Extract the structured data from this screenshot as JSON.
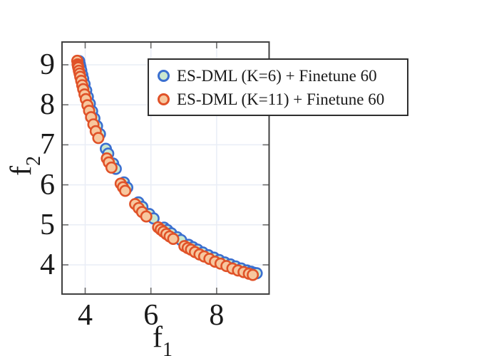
{
  "figure": {
    "background": "#ffffff",
    "border_color": "#404040",
    "grid_color": "#e9edf6",
    "tick_color": "#6b6b6b",
    "text_color": "#1a1a1a"
  },
  "chart_data": {
    "type": "scatter",
    "title": "",
    "xlabel_base": "f",
    "xlabel_sub": "1",
    "ylabel_base": "f",
    "ylabel_sub": "2",
    "xticks": [
      4,
      6,
      8
    ],
    "yticks": [
      4,
      5,
      6,
      7,
      8,
      9
    ],
    "xlim": [
      3.3,
      9.6
    ],
    "ylim": [
      3.27,
      9.57
    ],
    "grid": {
      "x": [
        4,
        6,
        8
      ],
      "y": [
        4,
        5,
        6,
        7,
        8,
        9
      ],
      "on": true
    },
    "legend_position": "upper-right-overlapping-plot",
    "series": [
      {
        "name": "ES-DML (K=6) + Finetune 60",
        "marker": "circle",
        "marker_edge": "#3a6fd0",
        "marker_fill": "#c9e7cf",
        "points": [
          [
            3.82,
            9.09
          ],
          [
            3.84,
            9.01
          ],
          [
            3.86,
            8.94
          ],
          [
            3.88,
            8.86
          ],
          [
            3.91,
            8.75
          ],
          [
            3.94,
            8.65
          ],
          [
            3.98,
            8.52
          ],
          [
            4.03,
            8.36
          ],
          [
            4.08,
            8.2
          ],
          [
            4.14,
            8.03
          ],
          [
            4.21,
            7.84
          ],
          [
            4.28,
            7.66
          ],
          [
            4.36,
            7.47
          ],
          [
            4.45,
            7.27
          ],
          [
            4.63,
            6.9
          ],
          [
            4.7,
            6.78
          ],
          [
            4.85,
            6.53
          ],
          [
            4.93,
            6.4
          ],
          [
            5.18,
            6.06
          ],
          [
            5.28,
            5.93
          ],
          [
            5.62,
            5.56
          ],
          [
            5.74,
            5.45
          ],
          [
            5.95,
            5.27
          ],
          [
            6.08,
            5.16
          ],
          [
            6.4,
            4.93
          ],
          [
            6.5,
            4.87
          ],
          [
            6.62,
            4.79
          ],
          [
            6.8,
            4.69
          ],
          [
            6.92,
            4.62
          ],
          [
            7.15,
            4.5
          ],
          [
            7.28,
            4.44
          ],
          [
            7.42,
            4.38
          ],
          [
            7.58,
            4.31
          ],
          [
            7.75,
            4.24
          ],
          [
            7.92,
            4.18
          ],
          [
            8.08,
            4.12
          ],
          [
            8.25,
            4.06
          ],
          [
            8.42,
            4.01
          ],
          [
            8.58,
            3.96
          ],
          [
            8.75,
            3.91
          ],
          [
            8.92,
            3.86
          ],
          [
            9.05,
            3.83
          ],
          [
            9.15,
            3.8
          ],
          [
            9.22,
            3.79
          ]
        ]
      },
      {
        "name": "ES-DML (K=11) + Finetune 60",
        "marker": "circle",
        "marker_edge": "#e05228",
        "marker_fill": "#f7c79e",
        "points": [
          [
            3.76,
            9.1
          ],
          [
            3.77,
            9.01
          ],
          [
            3.78,
            8.97
          ],
          [
            3.79,
            8.93
          ],
          [
            3.81,
            8.85
          ],
          [
            3.83,
            8.78
          ],
          [
            3.85,
            8.7
          ],
          [
            3.88,
            8.6
          ],
          [
            3.91,
            8.49
          ],
          [
            3.94,
            8.39
          ],
          [
            3.98,
            8.26
          ],
          [
            4.02,
            8.14
          ],
          [
            4.07,
            7.99
          ],
          [
            4.12,
            7.85
          ],
          [
            4.18,
            7.69
          ],
          [
            4.25,
            7.51
          ],
          [
            4.32,
            7.34
          ],
          [
            4.4,
            7.17
          ],
          [
            4.66,
            6.66
          ],
          [
            4.72,
            6.56
          ],
          [
            4.8,
            6.43
          ],
          [
            5.08,
            6.03
          ],
          [
            5.15,
            5.94
          ],
          [
            5.22,
            5.85
          ],
          [
            5.52,
            5.52
          ],
          [
            5.63,
            5.42
          ],
          [
            5.73,
            5.32
          ],
          [
            5.86,
            5.21
          ],
          [
            6.22,
            4.94
          ],
          [
            6.3,
            4.88
          ],
          [
            6.38,
            4.83
          ],
          [
            6.47,
            4.77
          ],
          [
            6.57,
            4.71
          ],
          [
            6.68,
            4.65
          ],
          [
            7.02,
            4.47
          ],
          [
            7.12,
            4.42
          ],
          [
            7.22,
            4.38
          ],
          [
            7.34,
            4.32
          ],
          [
            7.48,
            4.26
          ],
          [
            7.62,
            4.21
          ],
          [
            7.78,
            4.15
          ],
          [
            7.95,
            4.08
          ],
          [
            8.12,
            4.03
          ],
          [
            8.3,
            3.97
          ],
          [
            8.48,
            3.91
          ],
          [
            8.65,
            3.86
          ],
          [
            8.82,
            3.82
          ],
          [
            8.98,
            3.78
          ],
          [
            9.1,
            3.75
          ]
        ]
      }
    ]
  }
}
